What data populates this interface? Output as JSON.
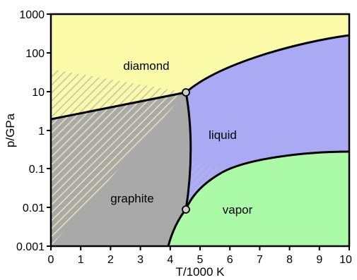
{
  "axes": {
    "x_label": "T/1000 K",
    "y_label": "p/GPa",
    "x_ticks": [
      "0",
      "1",
      "2",
      "3",
      "4",
      "5",
      "6",
      "7",
      "8",
      "9",
      "10"
    ],
    "y_ticks": [
      "1000",
      "100",
      "10",
      "1",
      "0.1",
      "0.01",
      "0.001"
    ]
  },
  "regions": {
    "diamond": "diamond",
    "liquid": "liquid",
    "graphite": "graphite",
    "vapor": "vapor"
  },
  "colors": {
    "diamond": "#fafaa8",
    "liquid": "#aaaaf4",
    "graphite": "#a9a9a9",
    "vapor": "#aafaa8",
    "hatch_diamond_on_graphite": "#e6e6b0",
    "hatch_graphite_on_diamond": "#c2c2b4",
    "hatch_liquid": "#b4b4e8",
    "boundary": "#000000",
    "triple_point_fill": "#cccccc"
  },
  "chart_data": {
    "type": "phase-diagram",
    "x_range": [
      0,
      10
    ],
    "y_scale": "log",
    "y_range": [
      0.001,
      1000
    ],
    "triple_points": [
      {
        "T": 4.5,
        "p": 10
      },
      {
        "T": 4.5,
        "p": 0.01
      }
    ],
    "phases": [
      "diamond",
      "liquid",
      "graphite",
      "vapor"
    ]
  }
}
